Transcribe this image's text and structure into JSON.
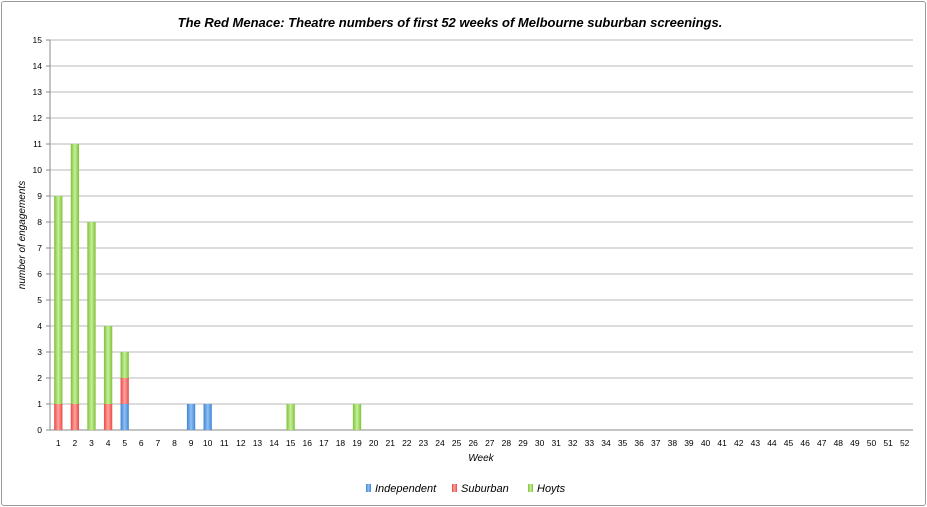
{
  "chart_data": {
    "type": "bar",
    "stacked": true,
    "title": "The Red Menace: Theatre numbers of first 52 weeks of Melbourne suburban screenings.",
    "xlabel": "Week",
    "ylabel": "number of engagements",
    "ylim": [
      0,
      15
    ],
    "yticks": [
      "0",
      "1",
      "2",
      "3",
      "4",
      "5",
      "6",
      "7",
      "8",
      "9",
      "10",
      "11",
      "12",
      "13",
      "14",
      "15"
    ],
    "grid": true,
    "legend_position": "bottom",
    "categories": [
      "1",
      "2",
      "3",
      "4",
      "5",
      "6",
      "7",
      "8",
      "9",
      "10",
      "11",
      "12",
      "13",
      "14",
      "15",
      "16",
      "17",
      "18",
      "19",
      "20",
      "21",
      "22",
      "23",
      "24",
      "25",
      "26",
      "27",
      "28",
      "29",
      "30",
      "31",
      "32",
      "33",
      "34",
      "35",
      "36",
      "37",
      "38",
      "39",
      "40",
      "41",
      "42",
      "43",
      "44",
      "45",
      "46",
      "47",
      "48",
      "49",
      "50",
      "51",
      "52"
    ],
    "series": [
      {
        "name": "Independent",
        "color": "#5a9be6",
        "values": [
          0,
          0,
          0,
          0,
          1,
          0,
          0,
          0,
          1,
          1,
          0,
          0,
          0,
          0,
          0,
          0,
          0,
          0,
          0,
          0,
          0,
          0,
          0,
          0,
          0,
          0,
          0,
          0,
          0,
          0,
          0,
          0,
          0,
          0,
          0,
          0,
          0,
          0,
          0,
          0,
          0,
          0,
          0,
          0,
          0,
          0,
          0,
          0,
          0,
          0,
          0,
          0
        ]
      },
      {
        "name": "Suburban",
        "color": "#f0605a",
        "values": [
          1,
          1,
          0,
          1,
          1,
          0,
          0,
          0,
          0,
          0,
          0,
          0,
          0,
          0,
          0,
          0,
          0,
          0,
          0,
          0,
          0,
          0,
          0,
          0,
          0,
          0,
          0,
          0,
          0,
          0,
          0,
          0,
          0,
          0,
          0,
          0,
          0,
          0,
          0,
          0,
          0,
          0,
          0,
          0,
          0,
          0,
          0,
          0,
          0,
          0,
          0,
          0
        ]
      },
      {
        "name": "Hoyts",
        "color": "#93d44a",
        "values": [
          8,
          10,
          8,
          3,
          1,
          0,
          0,
          0,
          0,
          0,
          0,
          0,
          0,
          0,
          1,
          0,
          0,
          0,
          1,
          0,
          0,
          0,
          0,
          0,
          0,
          0,
          0,
          0,
          0,
          0,
          0,
          0,
          0,
          0,
          0,
          0,
          0,
          0,
          0,
          0,
          0,
          0,
          0,
          0,
          0,
          0,
          0,
          0,
          0,
          0,
          0,
          0
        ]
      }
    ]
  }
}
